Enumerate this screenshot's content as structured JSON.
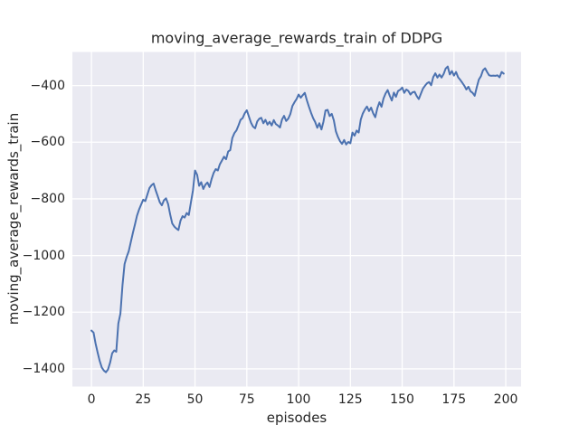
{
  "figure": {
    "title": "moving_average_rewards_train of DDPG",
    "xlabel": "episodes",
    "ylabel": "moving_average_rewards_train"
  },
  "colors": {
    "figure_bg": "#ffffff",
    "plot_bg": "#eaeaf2",
    "grid": "#ffffff",
    "line": "#4c72b0",
    "text": "#262626"
  },
  "chart_data": {
    "type": "line",
    "title": "moving_average_rewards_train of DDPG",
    "xlabel": "episodes",
    "ylabel": "moving_average_rewards_train",
    "grid": true,
    "legend_position": "none",
    "x_ticks": [
      0,
      25,
      50,
      75,
      100,
      125,
      150,
      175,
      200
    ],
    "y_ticks": [
      -400,
      -600,
      -800,
      -1000,
      -1200,
      -1400
    ],
    "xlim": [
      -9.2,
      207.4
    ],
    "ylim": [
      -1462.4,
      -281.6
    ],
    "series": [
      {
        "name": "moving_average_rewards_train",
        "color": "#4c72b0",
        "x_start": 0,
        "x_step": 1,
        "y": [
          -1265,
          -1272,
          -1310,
          -1342,
          -1372,
          -1395,
          -1406,
          -1412,
          -1402,
          -1378,
          -1345,
          -1335,
          -1340,
          -1240,
          -1205,
          -1105,
          -1030,
          -1005,
          -985,
          -952,
          -920,
          -890,
          -860,
          -838,
          -820,
          -803,
          -808,
          -785,
          -762,
          -752,
          -746,
          -770,
          -790,
          -812,
          -823,
          -805,
          -798,
          -818,
          -855,
          -887,
          -898,
          -905,
          -910,
          -877,
          -861,
          -866,
          -850,
          -857,
          -813,
          -770,
          -700,
          -715,
          -754,
          -741,
          -765,
          -750,
          -742,
          -758,
          -730,
          -708,
          -695,
          -700,
          -678,
          -665,
          -651,
          -660,
          -633,
          -628,
          -585,
          -568,
          -558,
          -540,
          -521,
          -515,
          -498,
          -487,
          -509,
          -531,
          -545,
          -551,
          -527,
          -517,
          -514,
          -533,
          -521,
          -538,
          -528,
          -541,
          -522,
          -536,
          -541,
          -548,
          -520,
          -507,
          -525,
          -517,
          -501,
          -472,
          -459,
          -448,
          -432,
          -443,
          -434,
          -426,
          -452,
          -475,
          -496,
          -515,
          -529,
          -549,
          -533,
          -555,
          -528,
          -488,
          -486,
          -508,
          -500,
          -523,
          -562,
          -582,
          -597,
          -606,
          -592,
          -608,
          -599,
          -604,
          -566,
          -577,
          -559,
          -566,
          -520,
          -499,
          -485,
          -474,
          -490,
          -478,
          -498,
          -512,
          -480,
          -459,
          -475,
          -446,
          -428,
          -416,
          -436,
          -453,
          -425,
          -440,
          -419,
          -415,
          -407,
          -426,
          -414,
          -419,
          -432,
          -424,
          -422,
          -437,
          -448,
          -429,
          -411,
          -401,
          -392,
          -388,
          -399,
          -370,
          -357,
          -372,
          -361,
          -372,
          -359,
          -340,
          -333,
          -361,
          -349,
          -365,
          -352,
          -371,
          -380,
          -390,
          -401,
          -414,
          -404,
          -420,
          -426,
          -436,
          -406,
          -379,
          -367,
          -346,
          -339,
          -352,
          -364,
          -366,
          -365,
          -366,
          -364,
          -371,
          -352,
          -358
        ]
      }
    ]
  }
}
